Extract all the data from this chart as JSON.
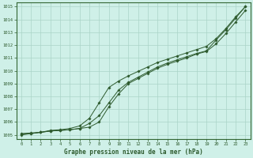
{
  "xlabel": "Graphe pression niveau de la mer (hPa)",
  "ylim": [
    1005,
    1015
  ],
  "xlim": [
    0,
    23
  ],
  "yticks": [
    1005,
    1006,
    1007,
    1008,
    1009,
    1010,
    1011,
    1012,
    1013,
    1014,
    1015
  ],
  "xticks": [
    0,
    1,
    2,
    3,
    4,
    5,
    6,
    7,
    8,
    9,
    10,
    11,
    12,
    13,
    14,
    15,
    16,
    17,
    18,
    19,
    20,
    21,
    22,
    23
  ],
  "background_color": "#cff0e8",
  "grid_color": "#aad4c8",
  "line_color": "#2d5a2d",
  "line1": [
    1005.1,
    1005.15,
    1005.2,
    1005.3,
    1005.35,
    1005.4,
    1005.5,
    1005.9,
    1006.5,
    1007.5,
    1008.5,
    1009.1,
    1009.5,
    1009.9,
    1010.3,
    1010.6,
    1010.85,
    1011.1,
    1011.35,
    1011.55,
    1012.4,
    1013.2,
    1014.1,
    1015.0
  ],
  "line2": [
    1005.05,
    1005.1,
    1005.2,
    1005.3,
    1005.35,
    1005.4,
    1005.5,
    1005.6,
    1006.0,
    1007.2,
    1008.2,
    1009.0,
    1009.4,
    1009.8,
    1010.2,
    1010.5,
    1010.75,
    1011.0,
    1011.3,
    1011.5,
    1012.1,
    1012.9,
    1013.8,
    1014.7
  ],
  "line3": [
    1005.0,
    1005.1,
    1005.2,
    1005.35,
    1005.4,
    1005.5,
    1005.7,
    1006.3,
    1007.5,
    1008.7,
    1009.2,
    1009.6,
    1009.95,
    1010.3,
    1010.65,
    1010.9,
    1011.15,
    1011.4,
    1011.65,
    1011.9,
    1012.5,
    1013.3,
    1014.2,
    1015.0
  ],
  "marker_style": "P",
  "marker_size": 2.0,
  "line_width": 0.7
}
